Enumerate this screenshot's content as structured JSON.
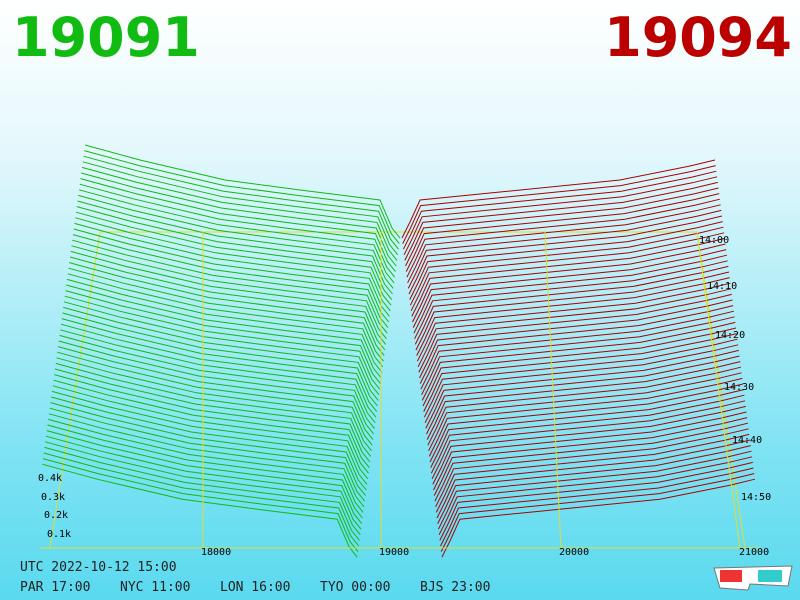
{
  "header": {
    "bid": "19091",
    "ask": "19094"
  },
  "price_axis": {
    "ticks": [
      "18000",
      "19000",
      "20000",
      "21000"
    ]
  },
  "time_axis": {
    "ticks": [
      "14:00",
      "14:10",
      "14:20",
      "14:30",
      "14:40",
      "14:50"
    ]
  },
  "depth_axis": {
    "ticks": [
      "0.4k",
      "0.3k",
      "0.2k",
      "0.1k"
    ]
  },
  "footer": {
    "utc": "UTC 2022-10-12 15:00",
    "zones": [
      "PAR 17:00",
      "NYC 11:00",
      "LON 16:00",
      "TYO 00:00",
      "BJS 23:00"
    ]
  }
}
